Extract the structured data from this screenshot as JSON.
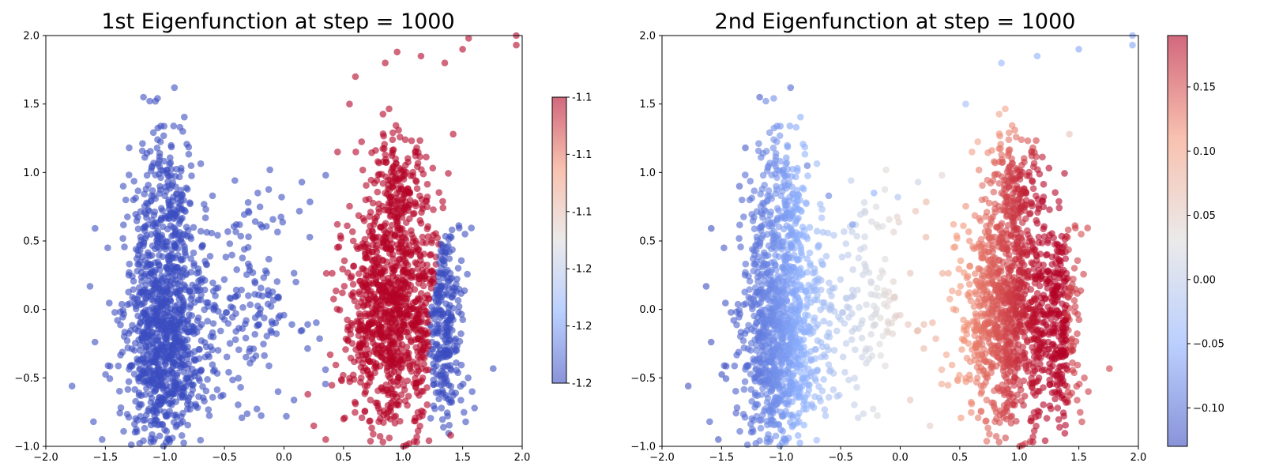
{
  "chart_data": [
    {
      "type": "scatter",
      "title": "1st Eigenfunction at step = 1000",
      "xlabel": "",
      "ylabel": "",
      "xlim": [
        -2.0,
        2.0
      ],
      "ylim": [
        -1.0,
        2.0
      ],
      "xticks": [
        "−2.0",
        "−1.5",
        "−1.0",
        "−0.5",
        "0.0",
        "0.5",
        "1.0",
        "1.5",
        "2.0"
      ],
      "yticks": [
        "−1.0",
        "−0.5",
        "0.0",
        "0.5",
        "1.0",
        "1.5",
        "2.0"
      ],
      "grid": false,
      "colormap": "coolwarm",
      "marker_alpha": 0.6,
      "colorbar": {
        "ticks": [
          "-1.1",
          "-1.1",
          "-1.1",
          "-1.2",
          "-1.2",
          "-1.2"
        ]
      },
      "coloring": "two-valued: red for the middle cluster, blue for the left cluster and right fringe",
      "points": [
        {
          "x": -1.78,
          "y": -0.56,
          "c": 0
        },
        {
          "x": -1.6,
          "y": -0.82,
          "c": 0
        },
        {
          "x": -1.48,
          "y": 0.45,
          "c": 0
        },
        {
          "x": -1.35,
          "y": 0.9,
          "c": 0
        },
        {
          "x": -1.3,
          "y": 1.18,
          "c": 0
        },
        {
          "x": -1.18,
          "y": 1.55,
          "c": 0
        },
        {
          "x": -1.08,
          "y": 1.52,
          "c": 0
        },
        {
          "x": -0.92,
          "y": 1.62,
          "c": 0
        },
        {
          "x": -0.85,
          "y": 1.3,
          "c": 0
        },
        {
          "x": -0.78,
          "y": 1.05,
          "c": 0
        },
        {
          "x": -0.6,
          "y": 0.83,
          "c": 0
        },
        {
          "x": -0.4,
          "y": 0.62,
          "c": 0
        },
        {
          "x": -0.22,
          "y": 0.85,
          "c": 0
        },
        {
          "x": -0.02,
          "y": 0.82,
          "c": 0
        },
        {
          "x": 0.15,
          "y": 0.93,
          "c": 0
        },
        {
          "x": 0.35,
          "y": 0.98,
          "c": 0
        },
        {
          "x": -0.05,
          "y": -0.6,
          "c": 0
        },
        {
          "x": 0.02,
          "y": -0.78,
          "c": 0
        },
        {
          "x": -0.3,
          "y": 0.1,
          "c": 0
        },
        {
          "x": 0.1,
          "y": 0.2,
          "c": 0
        },
        {
          "x": 1.3,
          "y": 0.0,
          "c": 0
        },
        {
          "x": 1.45,
          "y": -0.3,
          "c": 0
        },
        {
          "x": 1.52,
          "y": 0.55,
          "c": 0
        },
        {
          "x": 1.58,
          "y": -0.6,
          "c": 0
        },
        {
          "x": 1.35,
          "y": 0.4,
          "c": 0
        },
        {
          "x": 1.6,
          "y": -0.72,
          "c": 0
        },
        {
          "x": 0.45,
          "y": 1.15,
          "c": 1
        },
        {
          "x": 0.55,
          "y": 1.5,
          "c": 1
        },
        {
          "x": 0.6,
          "y": 1.7,
          "c": 1
        },
        {
          "x": 0.85,
          "y": 1.8,
          "c": 1
        },
        {
          "x": 0.95,
          "y": 1.88,
          "c": 1
        },
        {
          "x": 1.15,
          "y": 1.85,
          "c": 1
        },
        {
          "x": 1.35,
          "y": 1.8,
          "c": 1
        },
        {
          "x": 1.5,
          "y": 1.9,
          "c": 1
        },
        {
          "x": 1.55,
          "y": 1.98,
          "c": 1
        },
        {
          "x": 1.95,
          "y": 2.0,
          "c": 1
        },
        {
          "x": 1.95,
          "y": 1.93,
          "c": 1
        },
        {
          "x": 1.42,
          "y": 1.28,
          "c": 1
        },
        {
          "x": 0.2,
          "y": -0.62,
          "c": 1
        },
        {
          "x": 0.25,
          "y": -0.85,
          "c": 1
        },
        {
          "x": 0.35,
          "y": -0.95,
          "c": 1
        },
        {
          "x": 0.5,
          "y": -0.8,
          "c": 1
        },
        {
          "x": 1.05,
          "y": -0.98,
          "c": 1
        },
        {
          "x": 1.4,
          "y": -0.92,
          "c": 1
        }
      ]
    },
    {
      "type": "scatter",
      "title": "2nd Eigenfunction at step = 1000",
      "xlabel": "",
      "ylabel": "",
      "xlim": [
        -2.0,
        2.0
      ],
      "ylim": [
        -1.0,
        2.0
      ],
      "xticks": [
        "−2.0",
        "−1.5",
        "−1.0",
        "−0.5",
        "0.0",
        "0.5",
        "1.0",
        "1.5",
        "2.0"
      ],
      "yticks": [
        "−1.0",
        "−0.5",
        "0.0",
        "0.5",
        "1.0",
        "1.5",
        "2.0"
      ],
      "grid": false,
      "colormap": "coolwarm",
      "marker_alpha": 0.6,
      "colorbar": {
        "range": [
          -0.13,
          0.19
        ],
        "ticks": [
          -0.1,
          -0.05,
          0.0,
          0.05,
          0.1,
          0.15
        ],
        "tick_labels": [
          "−0.10",
          "−0.05",
          "0.00",
          "0.05",
          "0.10",
          "0.15"
        ]
      },
      "coloring": "continuous gradient along x: blue (left) → white (x≈0) → red (x≈1.2), lighter above x≈1.2",
      "points": [
        {
          "x": -1.78,
          "y": -0.56,
          "v": -0.13
        },
        {
          "x": -1.6,
          "y": -0.82,
          "v": -0.12
        },
        {
          "x": -1.48,
          "y": 0.45,
          "v": -0.12
        },
        {
          "x": -1.35,
          "y": 0.9,
          "v": -0.12
        },
        {
          "x": -1.3,
          "y": 1.18,
          "v": -0.12
        },
        {
          "x": -1.18,
          "y": 1.55,
          "v": -0.12
        },
        {
          "x": -0.92,
          "y": 1.62,
          "v": -0.11
        },
        {
          "x": -0.78,
          "y": 1.05,
          "v": -0.1
        },
        {
          "x": -0.6,
          "y": 0.83,
          "v": -0.09
        },
        {
          "x": -0.4,
          "y": 0.62,
          "v": -0.07
        },
        {
          "x": -0.22,
          "y": 0.85,
          "v": -0.05
        },
        {
          "x": -0.02,
          "y": 0.82,
          "v": -0.02
        },
        {
          "x": 0.15,
          "y": 0.93,
          "v": 0.01
        },
        {
          "x": 0.35,
          "y": 0.98,
          "v": 0.04
        },
        {
          "x": 0.55,
          "y": 1.5,
          "v": -0.03
        },
        {
          "x": 0.85,
          "y": 1.8,
          "v": -0.04
        },
        {
          "x": 1.15,
          "y": 1.85,
          "v": -0.05
        },
        {
          "x": 1.5,
          "y": 1.9,
          "v": -0.06
        },
        {
          "x": 1.95,
          "y": 2.0,
          "v": -0.06
        },
        {
          "x": 1.95,
          "y": 1.93,
          "v": -0.06
        },
        {
          "x": 1.42,
          "y": 1.28,
          "v": 0.06
        },
        {
          "x": 0.25,
          "y": -0.85,
          "v": 0.05
        },
        {
          "x": 1.05,
          "y": -0.98,
          "v": 0.16
        },
        {
          "x": 1.45,
          "y": -0.3,
          "v": 0.17
        },
        {
          "x": 1.58,
          "y": -0.6,
          "v": 0.16
        },
        {
          "x": 1.52,
          "y": 0.55,
          "v": 0.15
        }
      ]
    }
  ]
}
